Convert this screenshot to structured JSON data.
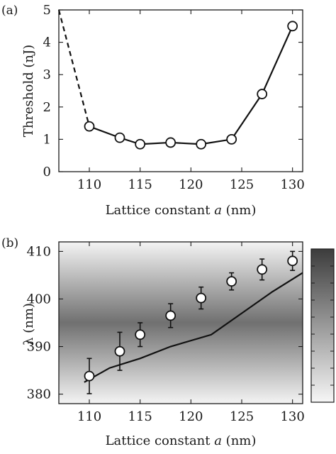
{
  "chart_data": [
    {
      "panel": "(a)",
      "type": "line",
      "xlabel_main": "Lattice constant ",
      "xlabel_var": "a",
      "xlabel_unit": " (nm)",
      "ylabel": "Threshold  (nJ)",
      "xlim": [
        107,
        131
      ],
      "ylim": [
        0,
        5
      ],
      "xticks": [
        110,
        115,
        120,
        125,
        130
      ],
      "yticks": [
        0,
        1,
        2,
        3,
        4,
        5
      ],
      "grid": false,
      "x": [
        110,
        113,
        115,
        118,
        121,
        124,
        127,
        130
      ],
      "y": [
        1.4,
        1.05,
        0.85,
        0.9,
        0.85,
        1.0,
        2.4,
        4.5
      ],
      "dashed_segment": {
        "x": [
          107,
          110
        ],
        "y": [
          5.0,
          1.4
        ]
      }
    },
    {
      "panel": "(b)",
      "type": "scatter",
      "xlabel_main": "Lattice constant ",
      "xlabel_var": "a",
      "xlabel_unit": " (nm)",
      "ylabel": "λ (nm)",
      "xlim": [
        107,
        131
      ],
      "ylim": [
        378,
        412
      ],
      "xticks": [
        110,
        115,
        120,
        125,
        130
      ],
      "yticks": [
        380,
        390,
        400,
        410
      ],
      "grid": false,
      "background": "grayscale map, darkest near 395 nm",
      "points": {
        "x": [
          110,
          113,
          115,
          118,
          121,
          124,
          127,
          130
        ],
        "y": [
          383.8,
          389.0,
          392.5,
          396.5,
          400.2,
          403.7,
          406.2,
          408.0
        ],
        "err": [
          3.7,
          4.0,
          2.5,
          2.5,
          2.3,
          1.8,
          2.2,
          2.0
        ]
      },
      "line": {
        "x": [
          109.5,
          112,
          115,
          118,
          122,
          125,
          128,
          131
        ],
        "y": [
          382.5,
          385.5,
          387.5,
          390.0,
          392.5,
          397.0,
          401.5,
          405.5
        ]
      }
    }
  ],
  "colorbar": {
    "top_color": "#3c3c3c",
    "bottom_color": "#f6f6f6"
  }
}
